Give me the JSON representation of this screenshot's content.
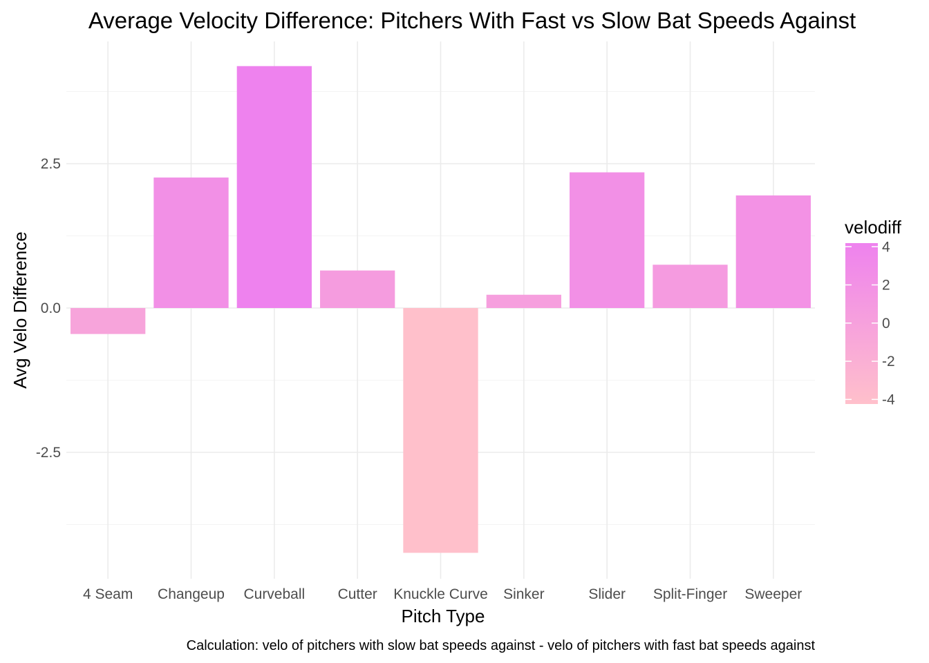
{
  "chart_data": {
    "type": "bar",
    "title": "Average Velocity Difference: Pitchers With Fast vs Slow Bat Speeds Against",
    "xlabel": "Pitch Type",
    "ylabel": "Avg Velo Difference",
    "caption": "Calculation: velo of pitchers with slow bat speeds against - velo of pitchers with fast bat speeds against",
    "categories": [
      "4 Seam",
      "Changeup",
      "Curveball",
      "Cutter",
      "Knuckle Curve",
      "Sinker",
      "Slider",
      "Split-Finger",
      "Sweeper"
    ],
    "values": [
      -0.45,
      2.26,
      4.19,
      0.65,
      -4.24,
      0.23,
      2.35,
      0.75,
      1.95
    ],
    "ylim": [
      -4.5,
      4.6
    ],
    "yticks": [
      -2.5,
      0.0,
      2.5
    ],
    "ytick_labels": [
      "-2.5",
      "0.0",
      "2.5"
    ],
    "grid": true,
    "legend": {
      "title": "velodiff",
      "placement": "right",
      "ticks": [
        4,
        2,
        0,
        -2,
        -4
      ],
      "tick_labels": [
        "4",
        "2",
        "0",
        "-2",
        "-4"
      ],
      "range": [
        -4.24,
        4.19
      ],
      "color_low": "#ffc0cb",
      "color_high": "#ee82ee"
    }
  }
}
